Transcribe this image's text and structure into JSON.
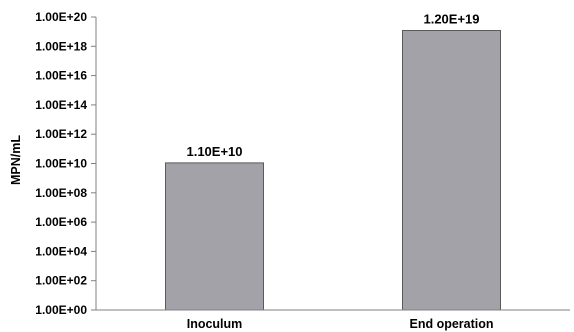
{
  "chart_data": {
    "type": "bar",
    "categories": [
      "Inoculum",
      "End operation"
    ],
    "values": [
      11000000000.0,
      1.2e+19
    ],
    "data_labels": [
      "1.10E+10",
      "1.20E+19"
    ],
    "title": "",
    "xlabel": "",
    "ylabel": "MPN/mL",
    "y_scale": "log",
    "ylim": [
      1,
      1e+20
    ],
    "y_ticks": [
      1,
      100.0,
      10000.0,
      1000000.0,
      100000000.0,
      10000000000.0,
      1000000000000.0,
      100000000000000.0,
      1e+16,
      1e+18,
      1e+20
    ],
    "y_tick_labels": [
      "1.00E+00",
      "1.00E+02",
      "1.00E+04",
      "1.00E+06",
      "1.00E+08",
      "1.00E+10",
      "1.00E+12",
      "1.00E+14",
      "1.00E+16",
      "1.00E+18",
      "1.00E+20"
    ],
    "grid": false,
    "legend": "none",
    "bar_color": "#a3a2a8",
    "bar_edge_color": "#5a5a5a",
    "axis_color": "#808080"
  }
}
